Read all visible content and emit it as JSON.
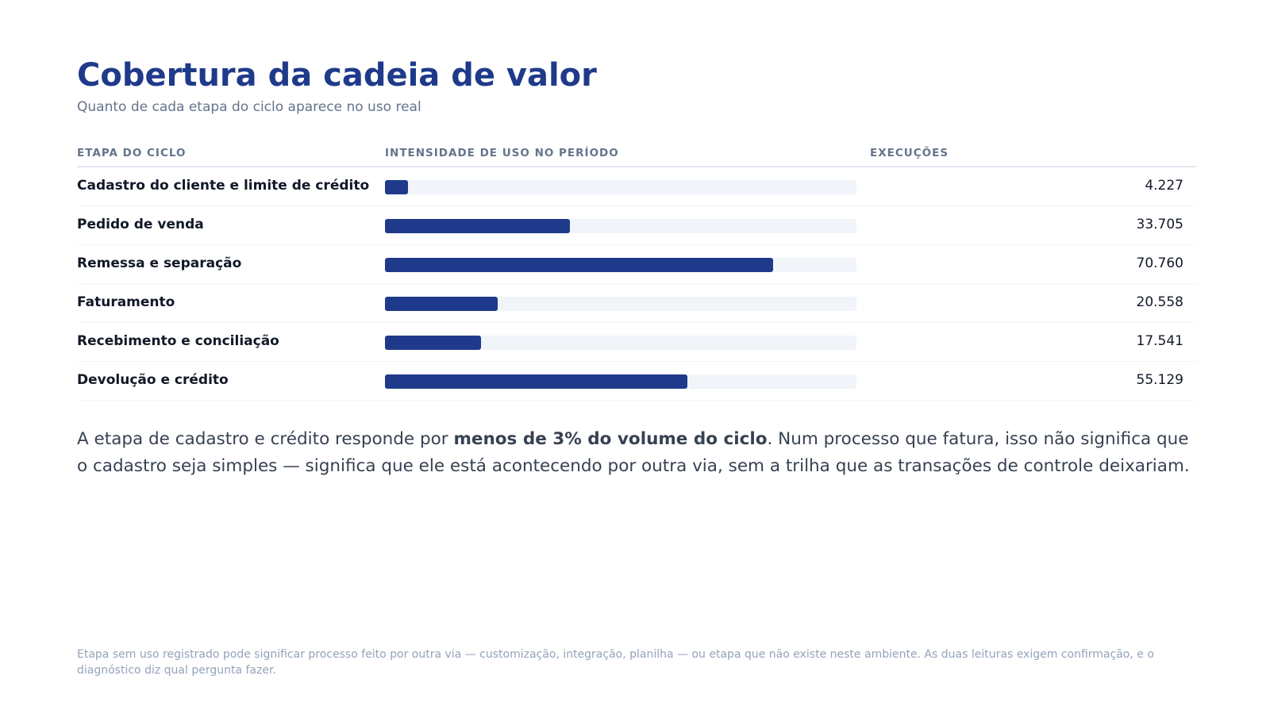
{
  "header": {
    "title": "Cobertura da cadeia de valor",
    "subtitle": "Quanto de cada etapa do ciclo aparece no uso real"
  },
  "table": {
    "col_stage": "ETAPA DO CICLO",
    "col_intensity": "INTENSIDADE DE USO NO PERÍODO",
    "col_executions": "EXECUÇÕES"
  },
  "colors": {
    "accent": "#1f3a8a",
    "bar_track": "#f1f4f9",
    "muted": "#64748b"
  },
  "chart_data": {
    "type": "bar",
    "orientation": "horizontal",
    "title": "Cobertura da cadeia de valor",
    "subtitle": "Quanto de cada etapa do ciclo aparece no uso real",
    "categories": [
      "Cadastro do cliente e limite de crédito",
      "Pedido de venda",
      "Remessa e separação",
      "Faturamento",
      "Recebimento e conciliação",
      "Devolução e crédito"
    ],
    "values": [
      4227,
      33705,
      70760,
      20558,
      17541,
      55129
    ],
    "value_labels": [
      "4.227",
      "33.705",
      "70.760",
      "20.558",
      "17.541",
      "55.129"
    ],
    "xlim": [
      0,
      86000
    ],
    "grid": false,
    "legend": "none"
  },
  "note": {
    "before": "A etapa de cadastro e crédito responde por ",
    "highlight": "menos de 3% do volume do ciclo",
    "after": ". Num processo que fatura, isso não significa que o cadastro seja simples — significa que ele está acontecendo por outra via, sem a trilha que as transações de controle deixariam."
  },
  "footer": {
    "text": "Etapa sem uso registrado pode significar processo feito por outra via — customização, integração, planilha — ou etapa que não existe neste ambiente. As duas leituras exigem confirmação, e o diagnóstico diz qual pergunta fazer."
  }
}
